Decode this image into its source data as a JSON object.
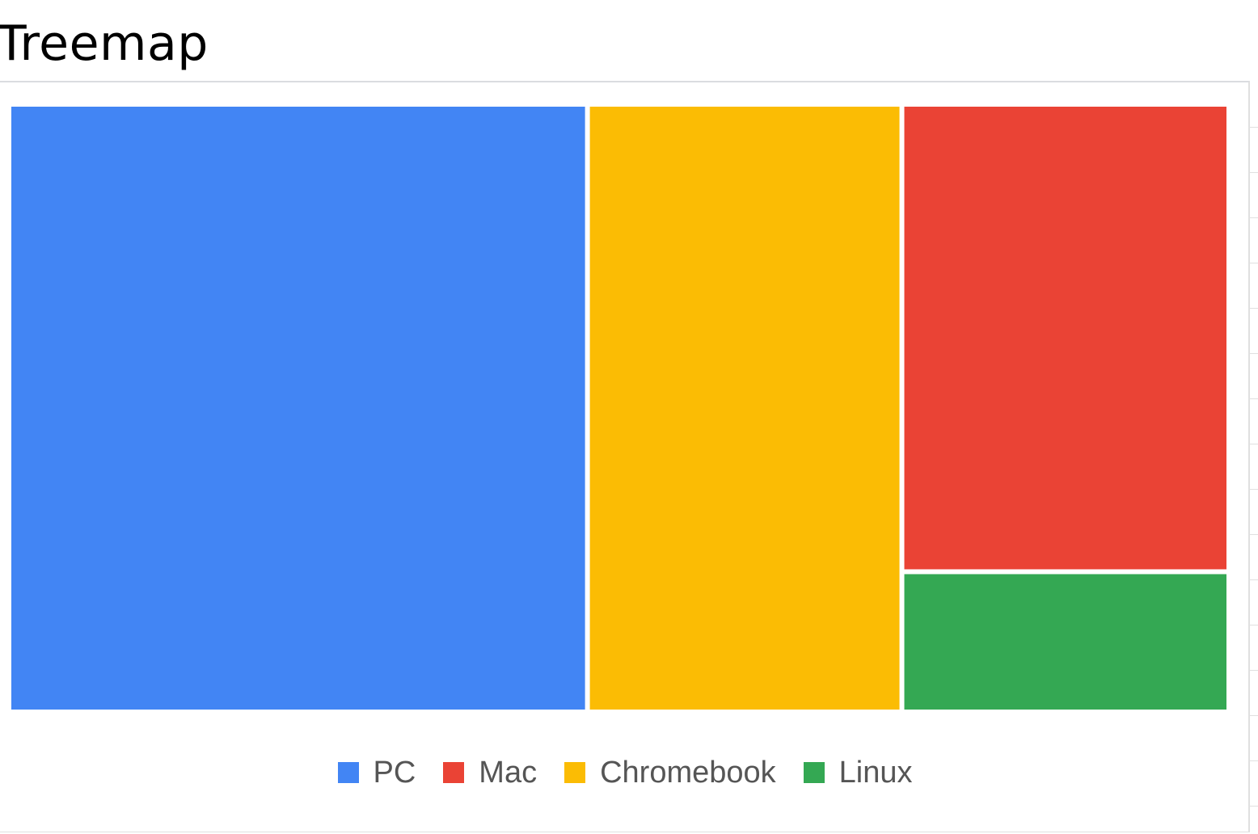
{
  "header": {
    "title": "Treemap"
  },
  "chart_data": {
    "type": "treemap",
    "title": "",
    "legend_position": "bottom",
    "items": [
      {
        "name": "PC",
        "value": 46,
        "color": "#4285f4"
      },
      {
        "name": "Mac",
        "value": 20,
        "color": "#ea4335"
      },
      {
        "name": "Chromebook",
        "value": 25,
        "color": "#fbbc04"
      },
      {
        "name": "Linux",
        "value": 6,
        "color": "#34a853"
      }
    ],
    "legend_order": [
      "PC",
      "Mac",
      "Chromebook",
      "Linux"
    ]
  }
}
